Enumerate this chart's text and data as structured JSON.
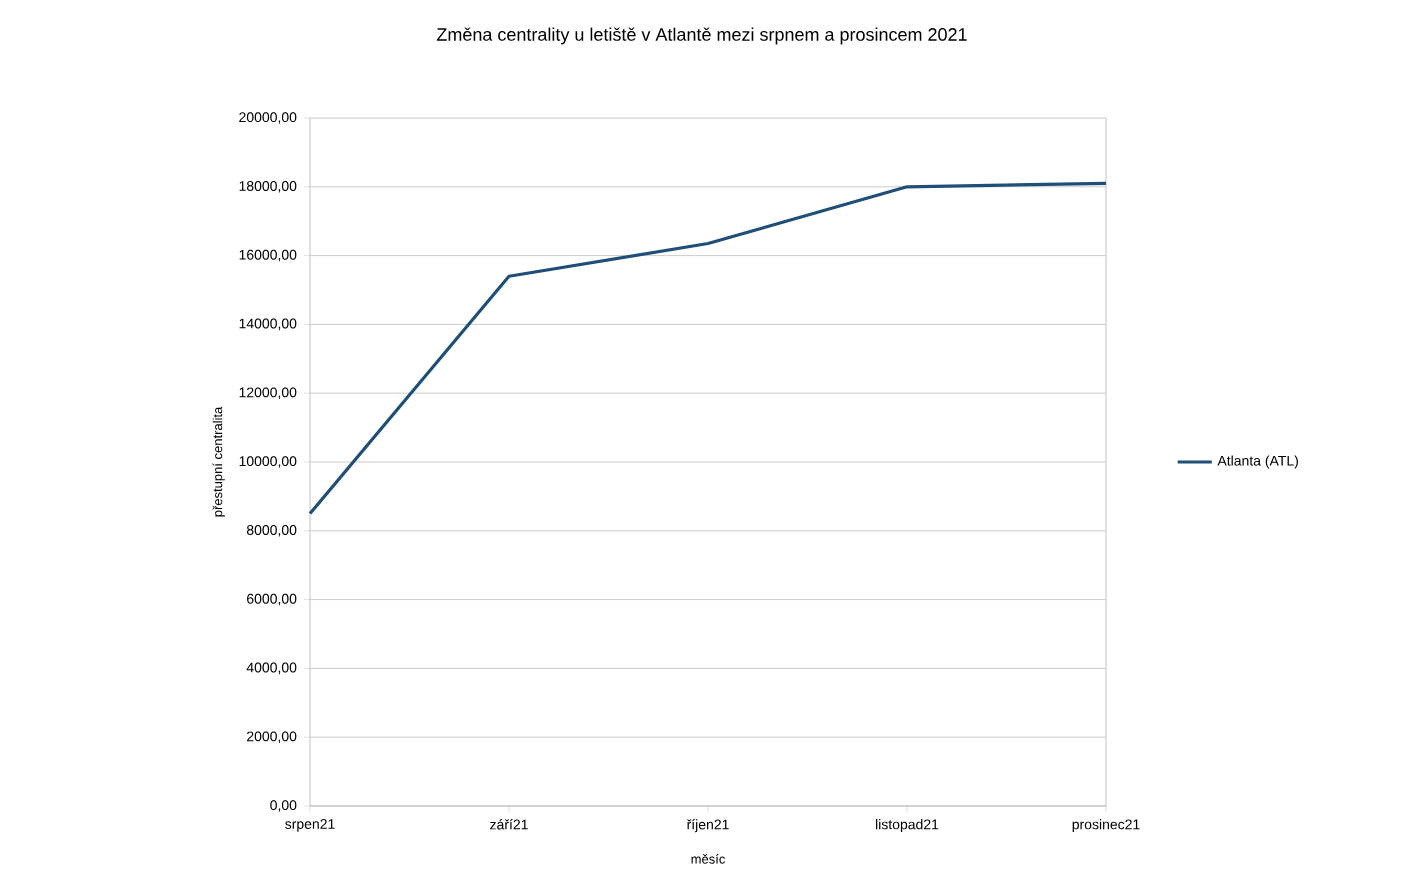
{
  "chart_data": {
    "type": "line",
    "title": "Změna centrality u letiště v Atlantě mezi srpnem a prosincem 2021",
    "xlabel": "měsíc",
    "ylabel": "přestupní centralita",
    "categories": [
      "srpen21",
      "září21",
      "říjen21",
      "listopad21",
      "prosinec21"
    ],
    "series": [
      {
        "name": "Atlanta (ATL)",
        "color": "#1f4e79",
        "values": [
          8500,
          15400,
          16350,
          18000,
          18100
        ]
      }
    ],
    "ylim": [
      0,
      20000
    ],
    "yticks": [
      {
        "value": 0,
        "label": "0,00"
      },
      {
        "value": 2000,
        "label": "2000,00"
      },
      {
        "value": 4000,
        "label": "4000,00"
      },
      {
        "value": 6000,
        "label": "6000,00"
      },
      {
        "value": 8000,
        "label": "8000,00"
      },
      {
        "value": 10000,
        "label": "10000,00"
      },
      {
        "value": 12000,
        "label": "12000,00"
      },
      {
        "value": 14000,
        "label": "14000,00"
      },
      {
        "value": 16000,
        "label": "16000,00"
      },
      {
        "value": 18000,
        "label": "18000,00"
      },
      {
        "value": 20000,
        "label": "20000,00"
      }
    ],
    "grid": "y",
    "legend": "right",
    "marker": "none",
    "line_style": "solid"
  }
}
